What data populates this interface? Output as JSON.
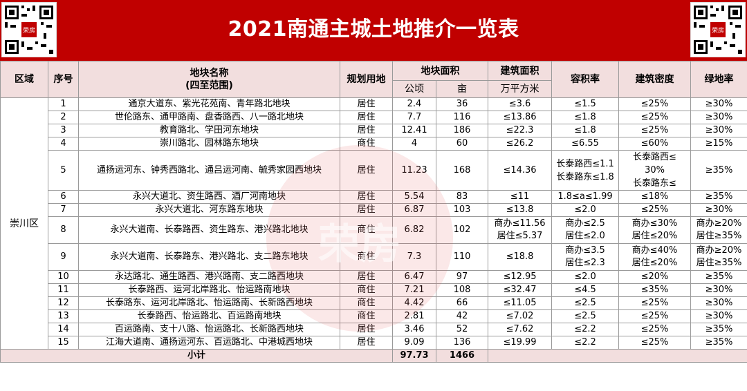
{
  "title": "2021南通主城土地推介一览表",
  "logo_text": "荣房",
  "headers": {
    "region": "区域",
    "seq": "序号",
    "name_line1": "地块名称",
    "name_line2": "(四至范围)",
    "use": "规划用地",
    "land_area": "地块面积",
    "land_area_ha": "公顷",
    "land_area_mu": "亩",
    "build_area": "建筑面积",
    "build_area_unit": "万平方米",
    "far": "容积率",
    "density": "建筑密度",
    "green": "绿地率"
  },
  "region_name": "崇川区",
  "rows": [
    {
      "seq": "1",
      "name": "通京大道东、紫光花苑南、青年路北地块",
      "use": "居住",
      "ha": "2.4",
      "mu": "36",
      "build": "≤3.6",
      "far": "≤1.5",
      "density": "≤25%",
      "green": "≥30%"
    },
    {
      "seq": "2",
      "name": "世伦路东、通甲路南、盘香路西、八一路北地块",
      "use": "居住",
      "ha": "7.7",
      "mu": "116",
      "build": "≤13.86",
      "far": "≤1.8",
      "density": "≤25%",
      "green": "≥30%"
    },
    {
      "seq": "3",
      "name": "教育路北、学田河东地块",
      "use": "居住",
      "ha": "12.41",
      "mu": "186",
      "build": "≤22.3",
      "far": "≤1.8",
      "density": "≤25%",
      "green": "≥30%"
    },
    {
      "seq": "4",
      "name": "崇川路北、园林路东地块",
      "use": "商住",
      "ha": "4",
      "mu": "60",
      "build": "≤26.2",
      "far": "≤6.55",
      "density": "≤60%",
      "green": "≥15%"
    },
    {
      "seq": "5",
      "name": "通扬运河东、钟秀西路北、通吕运河南、毓秀家园西地块",
      "use": "居住",
      "ha": "11.23",
      "mu": "168",
      "build": "≤14.36",
      "far_l1": "长泰路西≤1.1",
      "far_l2": "长泰路东≤1.8",
      "density_l1": "长泰路西≤",
      "density_l2": "30%",
      "density_l3": "长泰路东≤",
      "green": "≥35%"
    },
    {
      "seq": "6",
      "name": "永兴大道北、资生路西、酒厂河南地块",
      "use": "居住",
      "ha": "5.54",
      "mu": "83",
      "build": "≤11",
      "far": "1.8≤a≤1.99",
      "density": "≤18%",
      "green": "≥35%"
    },
    {
      "seq": "7",
      "name": "永兴大道北、河东路东地块",
      "use": "居住",
      "ha": "6.87",
      "mu": "103",
      "build": "≤13.8",
      "far": "≤2.0",
      "density": "≤25%",
      "green": "≥30%"
    },
    {
      "seq": "8",
      "name": "永兴大道南、长泰路西、资生路东、港兴路北地块",
      "use": "商住",
      "ha": "6.82",
      "mu": "102",
      "build_l1": "商办≤11.56",
      "build_l2": "居住≤5.37",
      "far_l1": "商办≤2.5",
      "far_l2": "居住≤2.0",
      "density_l1": "商办≤30%",
      "density_l2": "居住≤20%",
      "green_l1": "商办≥20%",
      "green_l2": "居住≥35%"
    },
    {
      "seq": "9",
      "name": "永兴大道南、长泰路东、港兴路北、支二路东地块",
      "use": "商住",
      "ha": "7.3",
      "mu": "110",
      "build": "≤18.8",
      "far_l1": "商办≤3.5",
      "far_l2": "居住≤2.3",
      "density_l1": "商办≤40%",
      "density_l2": "居住≤20%",
      "green_l1": "商办≥20%",
      "green_l2": "居住≥35%"
    },
    {
      "seq": "10",
      "name": "永达路北、通生路西、港兴路南、支二路西地块",
      "use": "居住",
      "ha": "6.47",
      "mu": "97",
      "build": "≤12.95",
      "far": "≤2.0",
      "density": "≤20%",
      "green": "≥35%"
    },
    {
      "seq": "11",
      "name": "长泰路西、运河北岸路北、怡运路南地块",
      "use": "商住",
      "ha": "7.21",
      "mu": "108",
      "build": "≤32.47",
      "far": "≤4.5",
      "density": "≤35%",
      "green": "≥30%"
    },
    {
      "seq": "12",
      "name": "长泰路东、运河北岸路北、怡运路南、长新路西地块",
      "use": "商住",
      "ha": "4.42",
      "mu": "66",
      "build": "≤11.05",
      "far": "≤2.5",
      "density": "≤25%",
      "green": "≥30%"
    },
    {
      "seq": "13",
      "name": "长泰路西、怡运路北、百运路南地块",
      "use": "商住",
      "ha": "2.81",
      "mu": "42",
      "build": "≤7.02",
      "far": "≤2.5",
      "density": "≤25%",
      "green": "≥30%"
    },
    {
      "seq": "14",
      "name": "百运路南、支十八路、怡运路北、长新路西地块",
      "use": "居住",
      "ha": "3.46",
      "mu": "52",
      "build": "≤7.62",
      "far": "≤2.2",
      "density": "≤25%",
      "green": "≥35%"
    },
    {
      "seq": "15",
      "name": "江海大道南、通扬运河东、百运路北、中港城西地块",
      "use": "居住",
      "ha": "9.09",
      "mu": "136",
      "build": "≤19.99",
      "far": "≤2.2",
      "density": "≤25%",
      "green": "≥35%"
    }
  ],
  "total": {
    "label": "小计",
    "ha": "97.73",
    "mu": "1466"
  }
}
